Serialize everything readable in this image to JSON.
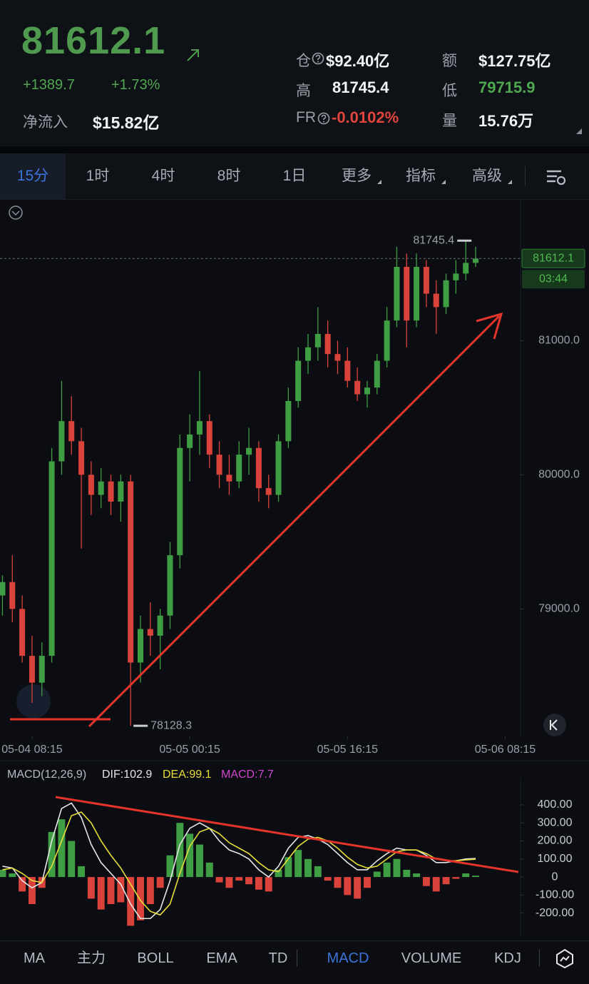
{
  "header": {
    "price": "81612.1",
    "change": "+1389.7",
    "change_pct": "+1.73%",
    "inflow_label": "净流入",
    "inflow": "$15.82亿",
    "stats": [
      {
        "label": "仓",
        "value": "$92.40亿",
        "help": true,
        "color": "#f2f3f5"
      },
      {
        "label": "额",
        "value": "$127.75亿",
        "help": false,
        "color": "#f2f3f5"
      },
      {
        "label": "高",
        "value": "81745.4",
        "help": false,
        "color": "#f2f3f5"
      },
      {
        "label": "低",
        "value": "79715.9",
        "help": false,
        "color": "#4fa84f"
      },
      {
        "label": "FR",
        "value": "-0.0102%",
        "help": true,
        "color": "#e0443c"
      },
      {
        "label": "量",
        "value": "15.76万",
        "help": false,
        "color": "#f2f3f5"
      }
    ]
  },
  "tabs": [
    "15分",
    "1时",
    "4时",
    "8时",
    "1日",
    "更多",
    "指标",
    "高级"
  ],
  "indicator_tabs": [
    "MA",
    "主力",
    "BOLL",
    "EMA",
    "TD",
    "MACD",
    "VOLUME",
    "KDJ"
  ],
  "chart_data": [
    {
      "type": "candlestick",
      "x": [
        -3,
        -2,
        -1,
        0,
        1,
        2,
        3,
        4,
        5,
        6,
        7,
        8,
        9,
        10,
        11,
        12,
        13,
        14,
        15,
        16,
        17,
        18,
        19,
        20,
        21,
        22,
        23,
        24,
        25,
        26,
        27,
        28,
        29,
        30,
        31,
        32,
        33,
        34,
        35,
        36,
        37,
        38,
        39,
        40,
        41,
        42,
        43,
        44,
        45
      ],
      "open": [
        79100,
        79200,
        79000,
        78650,
        78450,
        78650,
        80100,
        80400,
        80250,
        80000,
        79850,
        79950,
        79800,
        79950,
        78600,
        78850,
        78800,
        78950,
        79400,
        80200,
        80300,
        80400,
        80150,
        80000,
        79950,
        80150,
        80200,
        79900,
        79850,
        80250,
        80550,
        80850,
        80950,
        81050,
        80900,
        80850,
        80700,
        80600,
        80650,
        80850,
        81150,
        81550,
        81150,
        81550,
        81350,
        81250,
        81450,
        81500,
        81580
      ],
      "high": [
        79250,
        79400,
        79100,
        78800,
        78750,
        80200,
        80700,
        80586,
        80350,
        80100,
        80050,
        80000,
        80000,
        80000,
        78950,
        79050,
        79000,
        79500,
        80300,
        80450,
        80772,
        80450,
        80250,
        80150,
        80250,
        80350,
        80250,
        80000,
        80300,
        80650,
        80950,
        81050,
        81249,
        81150,
        81000,
        80950,
        80800,
        80700,
        80900,
        81250,
        81700,
        81650,
        81650,
        81600,
        81450,
        81500,
        81600,
        81745.4,
        81700
      ],
      "low": [
        78950,
        78900,
        78600,
        78300,
        78350,
        78600,
        80000,
        80150,
        79450,
        79700,
        79750,
        79700,
        79650,
        78128.3,
        78450,
        78650,
        78550,
        78850,
        79300,
        79950,
        80150,
        80050,
        79900,
        79850,
        79900,
        80000,
        79800,
        79750,
        79800,
        80200,
        80500,
        80750,
        80850,
        80800,
        80750,
        80650,
        80550,
        80500,
        80600,
        80800,
        81100,
        80950,
        81100,
        81250,
        81050,
        81200,
        81350,
        81450,
        81550
      ],
      "close": [
        79200,
        79000,
        78650,
        78450,
        78650,
        80100,
        80400,
        80250,
        80000,
        79850,
        79950,
        79800,
        79950,
        78600,
        78850,
        78800,
        78950,
        79400,
        80200,
        80300,
        80400,
        80150,
        80000,
        79950,
        80150,
        80200,
        79900,
        79850,
        80250,
        80550,
        80850,
        80950,
        81050,
        80900,
        80850,
        80700,
        80600,
        80650,
        80850,
        81150,
        81550,
        81150,
        81550,
        81350,
        81250,
        81450,
        81500,
        81580,
        81612.1
      ],
      "up_color": "#3f9e44",
      "down_color": "#d9433b",
      "xlim": [
        -3.25,
        56.5
      ],
      "ylim": [
        78060,
        82050
      ],
      "yticks": [
        {
          "value": 79000,
          "label": "79000.0"
        },
        {
          "value": 80000,
          "label": "80000.0"
        },
        {
          "value": 81000,
          "label": "81000.0"
        }
      ],
      "xticks": [
        {
          "value": 0,
          "label": "05-04 08:15"
        },
        {
          "value": 16,
          "label": "05-05 00:15"
        },
        {
          "value": 32,
          "label": "05-05 16:15"
        },
        {
          "value": 48,
          "label": "05-06 08:15"
        }
      ],
      "countdown": "03:44"
    },
    {
      "type": "macd",
      "title": "MACD(12,26,9)",
      "x": [
        -3,
        -2,
        -1,
        0,
        1,
        2,
        3,
        4,
        5,
        6,
        7,
        8,
        9,
        10,
        11,
        12,
        13,
        14,
        15,
        16,
        17,
        18,
        19,
        20,
        21,
        22,
        23,
        24,
        25,
        26,
        27,
        28,
        29,
        30,
        31,
        32,
        33,
        34,
        35,
        36,
        37,
        38,
        39,
        40,
        41,
        42,
        43,
        44,
        45
      ],
      "xlim": [
        -3.25,
        56.5
      ],
      "ylim": [
        -320,
        550
      ],
      "yticks": [
        {
          "value": -200,
          "label": "-200.00"
        },
        {
          "value": -100,
          "label": "-100.00"
        },
        {
          "value": 0,
          "label": "0"
        },
        {
          "value": 100,
          "label": "100.00"
        },
        {
          "value": 200,
          "label": "200.00"
        },
        {
          "value": 300,
          "label": "300.00"
        },
        {
          "value": 400,
          "label": "400.00"
        }
      ],
      "up_color": "#3f9e44",
      "down_color": "#d9433b",
      "series": [
        {
          "name": "DIF:",
          "style": "line",
          "color": "#e6e6e6",
          "values": [
            60,
            50,
            -20,
            -60,
            -30,
            200,
            380,
            410,
            330,
            180,
            80,
            20,
            -40,
            -150,
            -230,
            -230,
            -180,
            -20,
            180,
            270,
            300,
            270,
            200,
            150,
            130,
            100,
            40,
            0,
            60,
            160,
            220,
            230,
            210,
            180,
            130,
            80,
            40,
            40,
            90,
            130,
            160,
            150,
            150,
            120,
            80,
            80,
            90,
            100,
            102.9
          ]
        },
        {
          "name": "DEA:",
          "style": "line",
          "color": "#e8de3a",
          "values": [
            40,
            50,
            20,
            -20,
            -30,
            60,
            200,
            340,
            360,
            300,
            200,
            120,
            50,
            -40,
            -130,
            -190,
            -210,
            -150,
            20,
            170,
            250,
            270,
            240,
            190,
            160,
            130,
            80,
            40,
            30,
            100,
            170,
            210,
            220,
            200,
            160,
            110,
            70,
            50,
            60,
            100,
            140,
            150,
            150,
            130,
            100,
            90,
            90,
            95,
            99.1
          ]
        },
        {
          "name": "MACD:",
          "style": "bar",
          "color": "#cf45cf",
          "values": [
            40,
            20,
            -80,
            -150,
            -60,
            250,
            320,
            200,
            60,
            -120,
            -180,
            -150,
            -140,
            -270,
            -240,
            -150,
            -60,
            120,
            300,
            240,
            180,
            80,
            -30,
            -60,
            -20,
            -40,
            -70,
            -80,
            40,
            110,
            150,
            100,
            60,
            -20,
            -60,
            -100,
            -120,
            -60,
            30,
            80,
            100,
            40,
            20,
            -50,
            -80,
            -40,
            -10,
            20,
            7.7
          ]
        }
      ]
    }
  ]
}
